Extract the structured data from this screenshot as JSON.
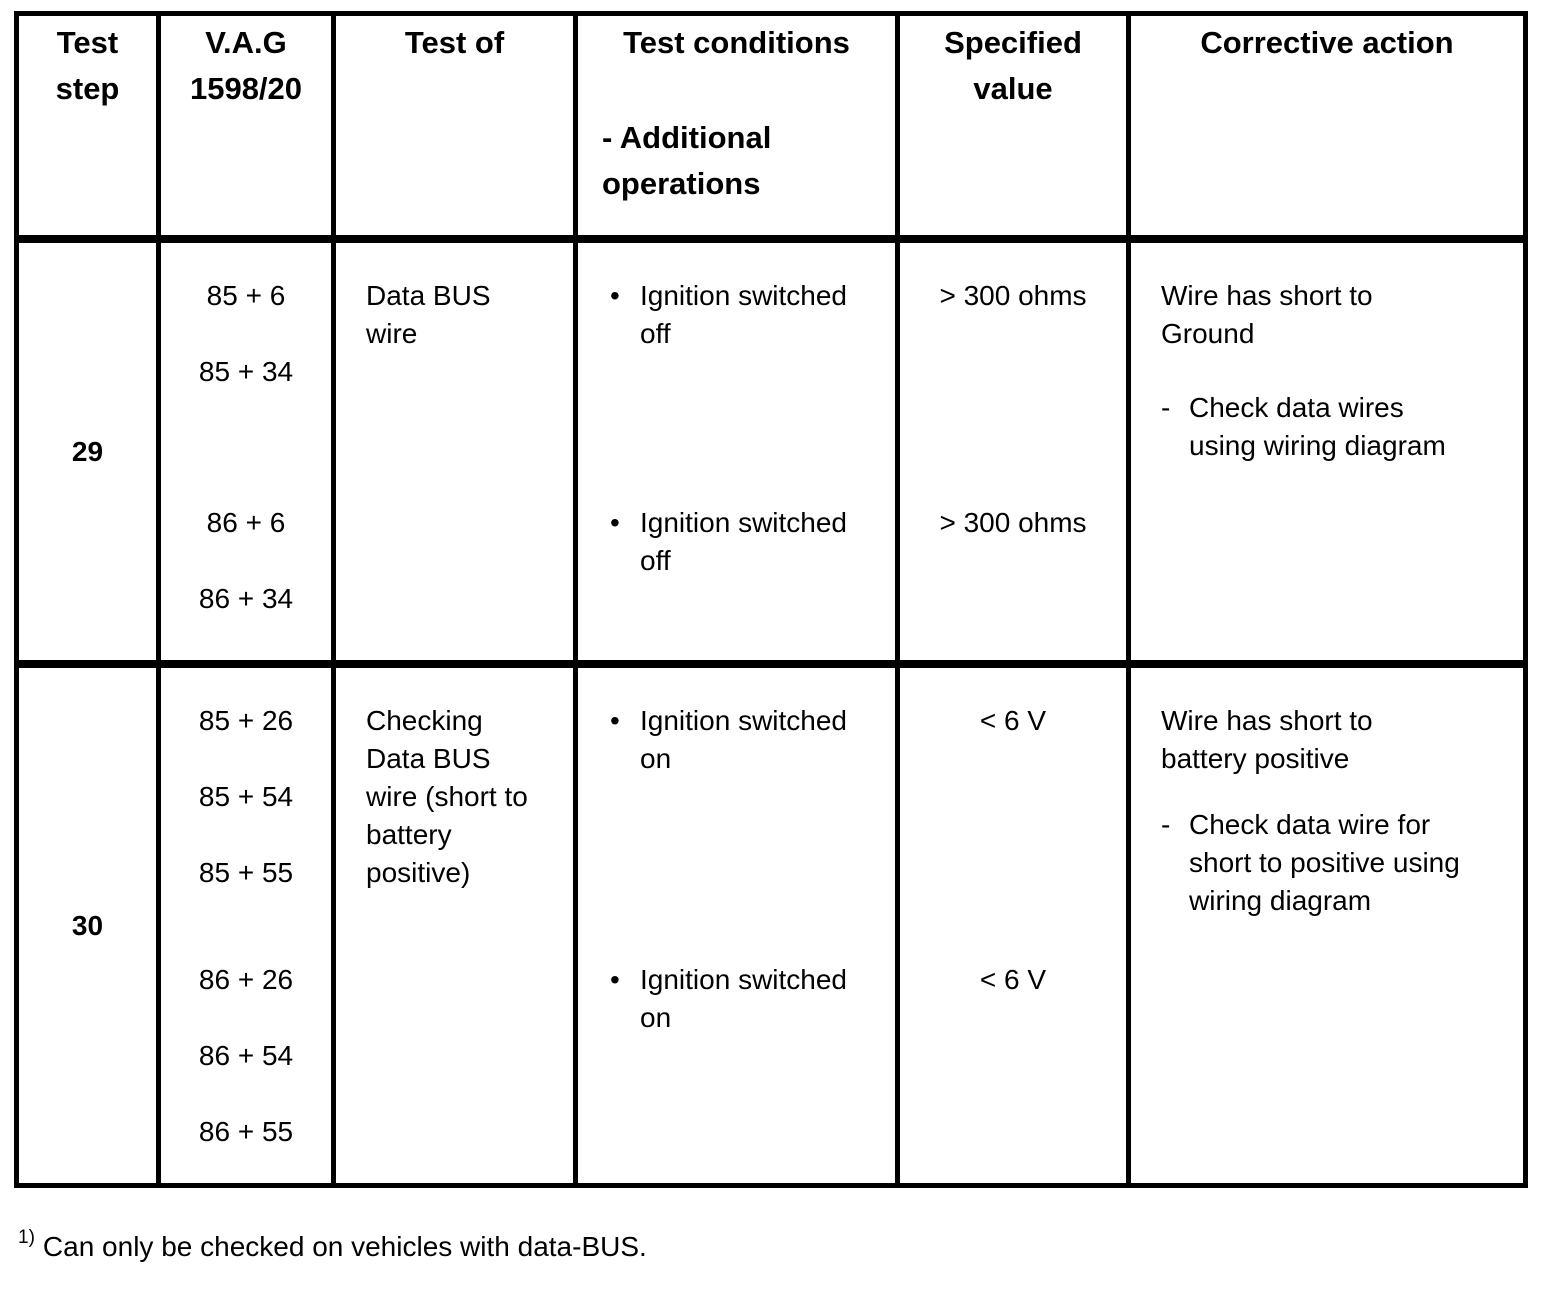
{
  "header": {
    "test_step": "Test\nstep",
    "vag": "V.A.G\n1598/20",
    "test_of": "Test of",
    "test_conditions": "Test conditions",
    "additional_operations": "- Additional\noperations",
    "specified_value": "Specified\nvalue",
    "corrective_action": "Corrective action"
  },
  "rows": [
    {
      "step": "29",
      "vag_group1": [
        "85 + 6",
        "85 + 34"
      ],
      "vag_group2": [
        "86 + 6",
        "86 + 34"
      ],
      "test_of": "Data BUS\nwire",
      "conditions": [
        {
          "bullet": "•",
          "text": "Ignition switched\noff",
          "value": "> 300 ohms"
        },
        {
          "bullet": "•",
          "text": "Ignition switched\noff",
          "value": "> 300 ohms"
        }
      ],
      "corrective_intro": "Wire has short to\nGround",
      "corrective_steps": [
        {
          "dash": "-",
          "text": "Check data wires\nusing wiring diagram"
        }
      ]
    },
    {
      "step": "30",
      "vag_group1": [
        "85 + 26",
        "85 + 54",
        "85 + 55"
      ],
      "vag_group2": [
        "86 + 26",
        "86 + 54",
        "86 + 55"
      ],
      "test_of": "Checking\nData BUS\nwire (short to\nbattery\npositive)",
      "conditions": [
        {
          "bullet": "•",
          "text": "Ignition switched\non",
          "value": "< 6 V"
        },
        {
          "bullet": "•",
          "text": "Ignition switched\non",
          "value": "< 6 V"
        }
      ],
      "corrective_intro": "Wire has short to\nbattery positive",
      "corrective_steps": [
        {
          "dash": "-",
          "text": "Check data wire for\nshort to positive using\nwiring diagram"
        }
      ]
    }
  ],
  "footnote": {
    "marker": "1)",
    "text": "Can only be checked on vehicles with data-BUS."
  }
}
